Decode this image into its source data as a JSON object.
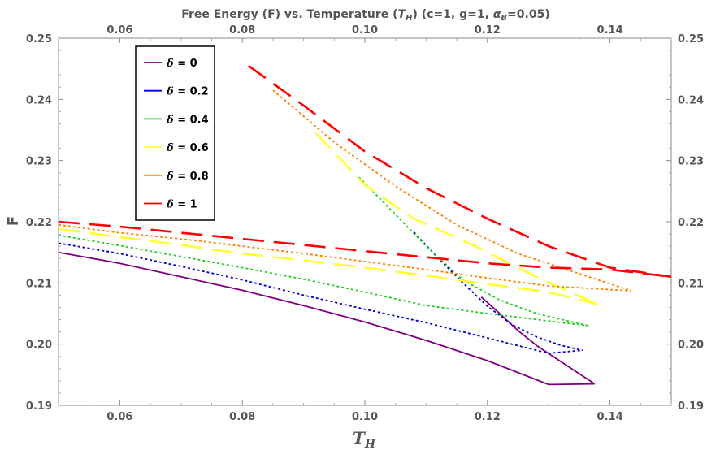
{
  "chart_data": {
    "type": "line",
    "title": "Free Energy (F) vs. Temperature (T_H) (c=1, g=1, α_B=0.05)",
    "title_parts": {
      "prefix": "Free Energy (F) vs. Temperature (",
      "t": "T",
      "t_sub": "H",
      "middle": ") (c=1, g=1, ",
      "alpha": "α",
      "alpha_sub": "B",
      "suffix": "=0.05)"
    },
    "xlabel": "T",
    "xlabel_sub": "H",
    "ylabel": "F",
    "xlim": [
      0.05,
      0.15
    ],
    "ylim": [
      0.19,
      0.25
    ],
    "xticks": [
      0.06,
      0.08,
      0.1,
      0.12,
      0.14
    ],
    "xtick_labels": [
      "0.06",
      "0.08",
      "0.10",
      "0.12",
      "0.14"
    ],
    "yticks": [
      0.19,
      0.2,
      0.21,
      0.22,
      0.23,
      0.24,
      0.25
    ],
    "ytick_labels": [
      "0.19",
      "0.20",
      "0.21",
      "0.22",
      "0.23",
      "0.24",
      "0.25"
    ],
    "legend_position": "top-left",
    "legend_symbol": "δ",
    "series": [
      {
        "name": "δ = 0",
        "label_value": "= 0",
        "color": "#800080",
        "dash": "solid",
        "branches": [
          [
            [
              0.05,
              0.215
            ],
            [
              0.06,
              0.2132
            ],
            [
              0.07,
              0.211
            ],
            [
              0.08,
              0.2088
            ],
            [
              0.09,
              0.2063
            ],
            [
              0.1,
              0.2036
            ],
            [
              0.11,
              0.2006
            ],
            [
              0.12,
              0.1973
            ],
            [
              0.13,
              0.1934
            ],
            [
              0.1375,
              0.1935
            ]
          ],
          [
            [
              0.119,
              0.2077
            ],
            [
              0.122,
              0.205
            ],
            [
              0.125,
              0.2022
            ],
            [
              0.128,
              0.1998
            ],
            [
              0.131,
              0.1978
            ],
            [
              0.134,
              0.1958
            ],
            [
              0.1375,
              0.1935
            ]
          ]
        ]
      },
      {
        "name": "δ = 0.2",
        "label_value": "= 0.2",
        "color": "#0000cc",
        "dash": "dotted",
        "branches": [
          [
            [
              0.05,
              0.2165
            ],
            [
              0.06,
              0.2148
            ],
            [
              0.07,
              0.2127
            ],
            [
              0.08,
              0.2105
            ],
            [
              0.09,
              0.208
            ],
            [
              0.1,
              0.2057
            ],
            [
              0.11,
              0.2035
            ],
            [
              0.12,
              0.201
            ],
            [
              0.13,
              0.1985
            ],
            [
              0.1355,
              0.199
            ]
          ],
          [
            [
              0.108,
              0.2183
            ],
            [
              0.112,
              0.214
            ],
            [
              0.116,
              0.21
            ],
            [
              0.12,
              0.2062
            ],
            [
              0.124,
              0.2032
            ],
            [
              0.128,
              0.2012
            ],
            [
              0.132,
              0.1998
            ],
            [
              0.1355,
              0.199
            ]
          ]
        ]
      },
      {
        "name": "δ = 0.4",
        "label_value": "= 0.4",
        "color": "#22cc22",
        "dash": "dotted",
        "branches": [
          [
            [
              0.05,
              0.2178
            ],
            [
              0.06,
              0.2161
            ],
            [
              0.07,
              0.2143
            ],
            [
              0.08,
              0.2125
            ],
            [
              0.09,
              0.2106
            ],
            [
              0.1,
              0.2085
            ],
            [
              0.11,
              0.2063
            ],
            [
              0.12,
              0.205
            ],
            [
              0.1365,
              0.203
            ]
          ],
          [
            [
              0.099,
              0.2273
            ],
            [
              0.104,
              0.2222
            ],
            [
              0.11,
              0.216
            ],
            [
              0.116,
              0.2105
            ],
            [
              0.122,
              0.2072
            ],
            [
              0.128,
              0.205
            ],
            [
              0.1365,
              0.203
            ]
          ]
        ]
      },
      {
        "name": "δ = 0.6",
        "label_value": "= 0.6",
        "color": "#ffff33",
        "dash": "long-dash",
        "branches": [
          [
            [
              0.05,
              0.2188
            ],
            [
              0.06,
              0.2175
            ],
            [
              0.07,
              0.2162
            ],
            [
              0.08,
              0.2148
            ],
            [
              0.09,
              0.2137
            ],
            [
              0.1,
              0.2125
            ],
            [
              0.11,
              0.2112
            ],
            [
              0.12,
              0.2098
            ],
            [
              0.13,
              0.2085
            ],
            [
              0.138,
              0.2065
            ]
          ],
          [
            [
              0.092,
              0.2345
            ],
            [
              0.1,
              0.226
            ],
            [
              0.108,
              0.2205
            ],
            [
              0.118,
              0.216
            ],
            [
              0.128,
              0.211
            ],
            [
              0.138,
              0.2065
            ]
          ]
        ]
      },
      {
        "name": "δ = 0.8",
        "label_value": "= 0.8",
        "color": "#ff8000",
        "dash": "dotted",
        "branches": [
          [
            [
              0.05,
              0.2195
            ],
            [
              0.06,
              0.2182
            ],
            [
              0.07,
              0.2172
            ],
            [
              0.08,
              0.216
            ],
            [
              0.09,
              0.2148
            ],
            [
              0.1,
              0.2135
            ],
            [
              0.11,
              0.2122
            ],
            [
              0.12,
              0.2108
            ],
            [
              0.13,
              0.2095
            ],
            [
              0.1435,
              0.2087
            ]
          ],
          [
            [
              0.085,
              0.2415
            ],
            [
              0.095,
              0.233
            ],
            [
              0.105,
              0.2258
            ],
            [
              0.115,
              0.2195
            ],
            [
              0.125,
              0.2148
            ],
            [
              0.1435,
              0.2087
            ]
          ]
        ]
      },
      {
        "name": "δ = 1",
        "label_value": "= 1",
        "color": "#ff0000",
        "dash": "long-dash",
        "branches": [
          [
            [
              0.05,
              0.22
            ],
            [
              0.06,
              0.2192
            ],
            [
              0.07,
              0.2182
            ],
            [
              0.08,
              0.2172
            ],
            [
              0.09,
              0.2162
            ],
            [
              0.1,
              0.2152
            ],
            [
              0.11,
              0.2142
            ],
            [
              0.12,
              0.2132
            ],
            [
              0.13,
              0.2125
            ],
            [
              0.14,
              0.2122
            ],
            [
              0.15,
              0.211
            ]
          ],
          [
            [
              0.081,
              0.2455
            ],
            [
              0.09,
              0.239
            ],
            [
              0.1,
              0.2315
            ],
            [
              0.11,
              0.2255
            ],
            [
              0.12,
              0.2205
            ],
            [
              0.13,
              0.216
            ],
            [
              0.14,
              0.2125
            ],
            [
              0.15,
              0.211
            ]
          ]
        ]
      }
    ]
  }
}
